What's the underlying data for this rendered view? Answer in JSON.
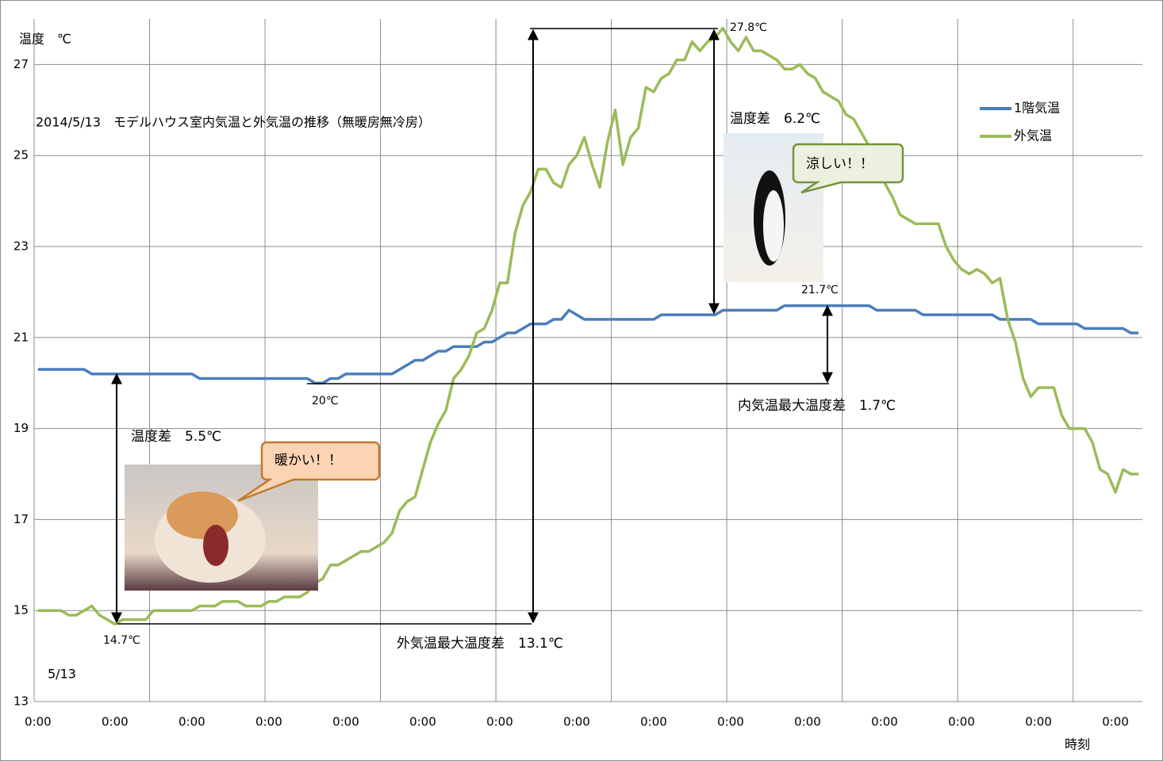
{
  "chart_data": {
    "type": "line",
    "title": "2014/5/13　モデルハウス室内気温と外気温の推移（無暖房無冷房）",
    "y_label": "温度　℃",
    "x_label": "時刻",
    "date_label": "5/13",
    "categories": [
      "0:00",
      null,
      null,
      null,
      null,
      null,
      null,
      null,
      null,
      null,
      "0:00",
      null,
      null,
      null,
      null,
      null,
      null,
      null,
      null,
      null,
      "0:00",
      null,
      null,
      null,
      null,
      null,
      null,
      null,
      null,
      null,
      "0:00",
      null,
      null,
      null,
      null,
      null,
      null,
      null,
      null,
      null,
      "0:00",
      null,
      null,
      null,
      null,
      null,
      null,
      null,
      null,
      null,
      "0:00",
      null,
      null,
      null,
      null,
      null,
      null,
      null,
      null,
      null,
      "0:00",
      null,
      null,
      null,
      null,
      null,
      null,
      null,
      null,
      null,
      "0:00",
      null,
      null,
      null,
      null,
      null,
      null,
      null,
      null,
      null,
      "0:00",
      null,
      null,
      null,
      null,
      null,
      null,
      null,
      null,
      null,
      "0:00",
      null,
      null,
      null,
      null,
      null,
      null,
      null,
      null,
      null,
      "0:00",
      null,
      null,
      null,
      null,
      null,
      null,
      null,
      null,
      null,
      "0:00",
      null,
      null,
      null,
      null,
      null,
      null,
      null,
      null,
      null,
      "0:00",
      null,
      null,
      null,
      null,
      null,
      null,
      null,
      null,
      null,
      "0:00",
      null,
      null,
      null,
      null,
      null,
      null,
      null,
      null,
      null,
      "0:00",
      null,
      null,
      null
    ],
    "series": [
      {
        "name": "1階気温",
        "color": "#4a7ebb",
        "values": [
          20.3,
          20.3,
          20.3,
          20.3,
          20.3,
          20.3,
          20.3,
          20.2,
          20.2,
          20.2,
          20.2,
          20.2,
          20.2,
          20.2,
          20.2,
          20.2,
          20.2,
          20.2,
          20.2,
          20.2,
          20.2,
          20.1,
          20.1,
          20.1,
          20.1,
          20.1,
          20.1,
          20.1,
          20.1,
          20.1,
          20.1,
          20.1,
          20.1,
          20.1,
          20.1,
          20.1,
          20.0,
          20.0,
          20.1,
          20.1,
          20.2,
          20.2,
          20.2,
          20.2,
          20.2,
          20.2,
          20.2,
          20.3,
          20.4,
          20.5,
          20.5,
          20.6,
          20.7,
          20.7,
          20.8,
          20.8,
          20.8,
          20.8,
          20.9,
          20.9,
          21.0,
          21.1,
          21.1,
          21.2,
          21.3,
          21.3,
          21.3,
          21.4,
          21.4,
          21.6,
          21.5,
          21.4,
          21.4,
          21.4,
          21.4,
          21.4,
          21.4,
          21.4,
          21.4,
          21.4,
          21.4,
          21.5,
          21.5,
          21.5,
          21.5,
          21.5,
          21.5,
          21.5,
          21.5,
          21.6,
          21.6,
          21.6,
          21.6,
          21.6,
          21.6,
          21.6,
          21.6,
          21.7,
          21.7,
          21.7,
          21.7,
          21.7,
          21.7,
          21.7,
          21.7,
          21.7,
          21.7,
          21.7,
          21.7,
          21.6,
          21.6,
          21.6,
          21.6,
          21.6,
          21.6,
          21.5,
          21.5,
          21.5,
          21.5,
          21.5,
          21.5,
          21.5,
          21.5,
          21.5,
          21.5,
          21.4,
          21.4,
          21.4,
          21.4,
          21.4,
          21.3,
          21.3,
          21.3,
          21.3,
          21.3,
          21.3,
          21.2,
          21.2,
          21.2,
          21.2,
          21.2,
          21.2,
          21.1,
          21.1
        ]
      },
      {
        "name": "外気温",
        "color": "#9bbb59",
        "values": [
          15.0,
          15.0,
          15.0,
          15.0,
          14.9,
          14.9,
          15.0,
          15.1,
          14.9,
          14.8,
          14.7,
          14.8,
          14.8,
          14.8,
          14.8,
          15.0,
          15.0,
          15.0,
          15.0,
          15.0,
          15.0,
          15.1,
          15.1,
          15.1,
          15.2,
          15.2,
          15.2,
          15.1,
          15.1,
          15.1,
          15.2,
          15.2,
          15.3,
          15.3,
          15.3,
          15.4,
          15.6,
          15.7,
          16.0,
          16.0,
          16.1,
          16.2,
          16.3,
          16.3,
          16.4,
          16.5,
          16.7,
          17.2,
          17.4,
          17.5,
          18.1,
          18.7,
          19.1,
          19.4,
          20.1,
          20.3,
          20.6,
          21.1,
          21.2,
          21.6,
          22.2,
          22.2,
          23.3,
          23.9,
          24.2,
          24.7,
          24.7,
          24.4,
          24.3,
          24.8,
          25.0,
          25.4,
          24.8,
          24.3,
          25.3,
          26.0,
          24.8,
          25.4,
          25.6,
          26.5,
          26.4,
          26.7,
          26.8,
          27.1,
          27.1,
          27.5,
          27.3,
          27.5,
          27.6,
          27.8,
          27.5,
          27.3,
          27.6,
          27.3,
          27.3,
          27.2,
          27.1,
          26.9,
          26.9,
          27.0,
          26.8,
          26.7,
          26.4,
          26.3,
          26.2,
          25.9,
          25.8,
          25.5,
          25.2,
          24.8,
          24.4,
          24.1,
          23.7,
          23.6,
          23.5,
          23.5,
          23.5,
          23.5,
          23.0,
          22.7,
          22.5,
          22.4,
          22.5,
          22.4,
          22.2,
          22.3,
          21.4,
          20.9,
          20.1,
          19.7,
          19.9,
          19.9,
          19.9,
          19.3,
          19.0,
          19.0,
          19.0,
          18.7,
          18.1,
          18.0,
          17.6,
          18.1,
          18.0,
          18.0
        ]
      }
    ],
    "ylim": [
      13,
      28
    ],
    "yticks": [
      13,
      15,
      17,
      19,
      21,
      23,
      25,
      27
    ],
    "grid": true,
    "xgrid_every": 15,
    "legend": "right",
    "annotations": [
      "27.8℃",
      "14.7℃",
      "20℃",
      "21.7℃",
      "温度差　5.5℃",
      "温度差　6.2℃",
      "内気温最大温度差　1.7℃",
      "外気温最大温度差　13.1℃",
      "暖かい！！",
      "涼しい！！"
    ]
  }
}
